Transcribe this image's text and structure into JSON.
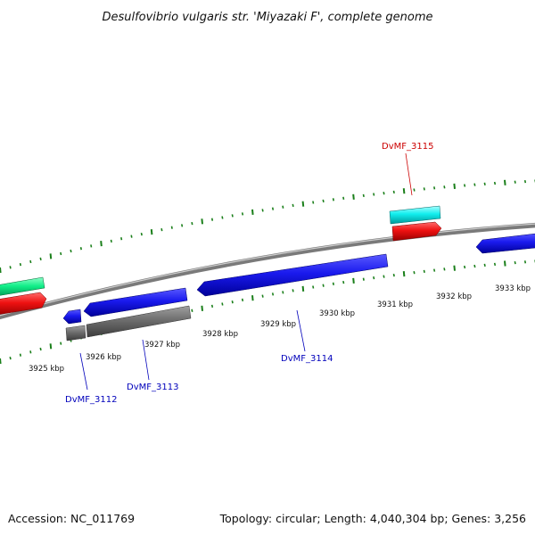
{
  "title": "Desulfovibrio vulgaris str. 'Miyazaki F', complete genome",
  "footer": {
    "accession": "Accession: NC_011769",
    "summary": "Topology: circular; Length: 4,040,304 bp; Genes: 3,256"
  },
  "ruler": {
    "tick_labels": [
      "3925 kbp",
      "3926 kbp",
      "3927 kbp",
      "3928 kbp",
      "3929 kbp",
      "3930 kbp",
      "3931 kbp",
      "3932 kbp",
      "3933 kbp"
    ],
    "tick_color": "#1a7f1a"
  },
  "gene_labels": [
    {
      "text": "DvMF_3112",
      "color": "#0000bb"
    },
    {
      "text": "DvMF_3113",
      "color": "#0000bb"
    },
    {
      "text": "DvMF_3114",
      "color": "#0000bb"
    },
    {
      "text": "DvMF_3115",
      "color": "#cc0000"
    }
  ],
  "colors": {
    "backbone": "#888888",
    "cds_blue": "#1a1aee",
    "gene_grey": "#6e6e6e",
    "cds_red": "#ee1111",
    "cds_cyan": "#11eeee",
    "cds_green": "#11ee88"
  }
}
